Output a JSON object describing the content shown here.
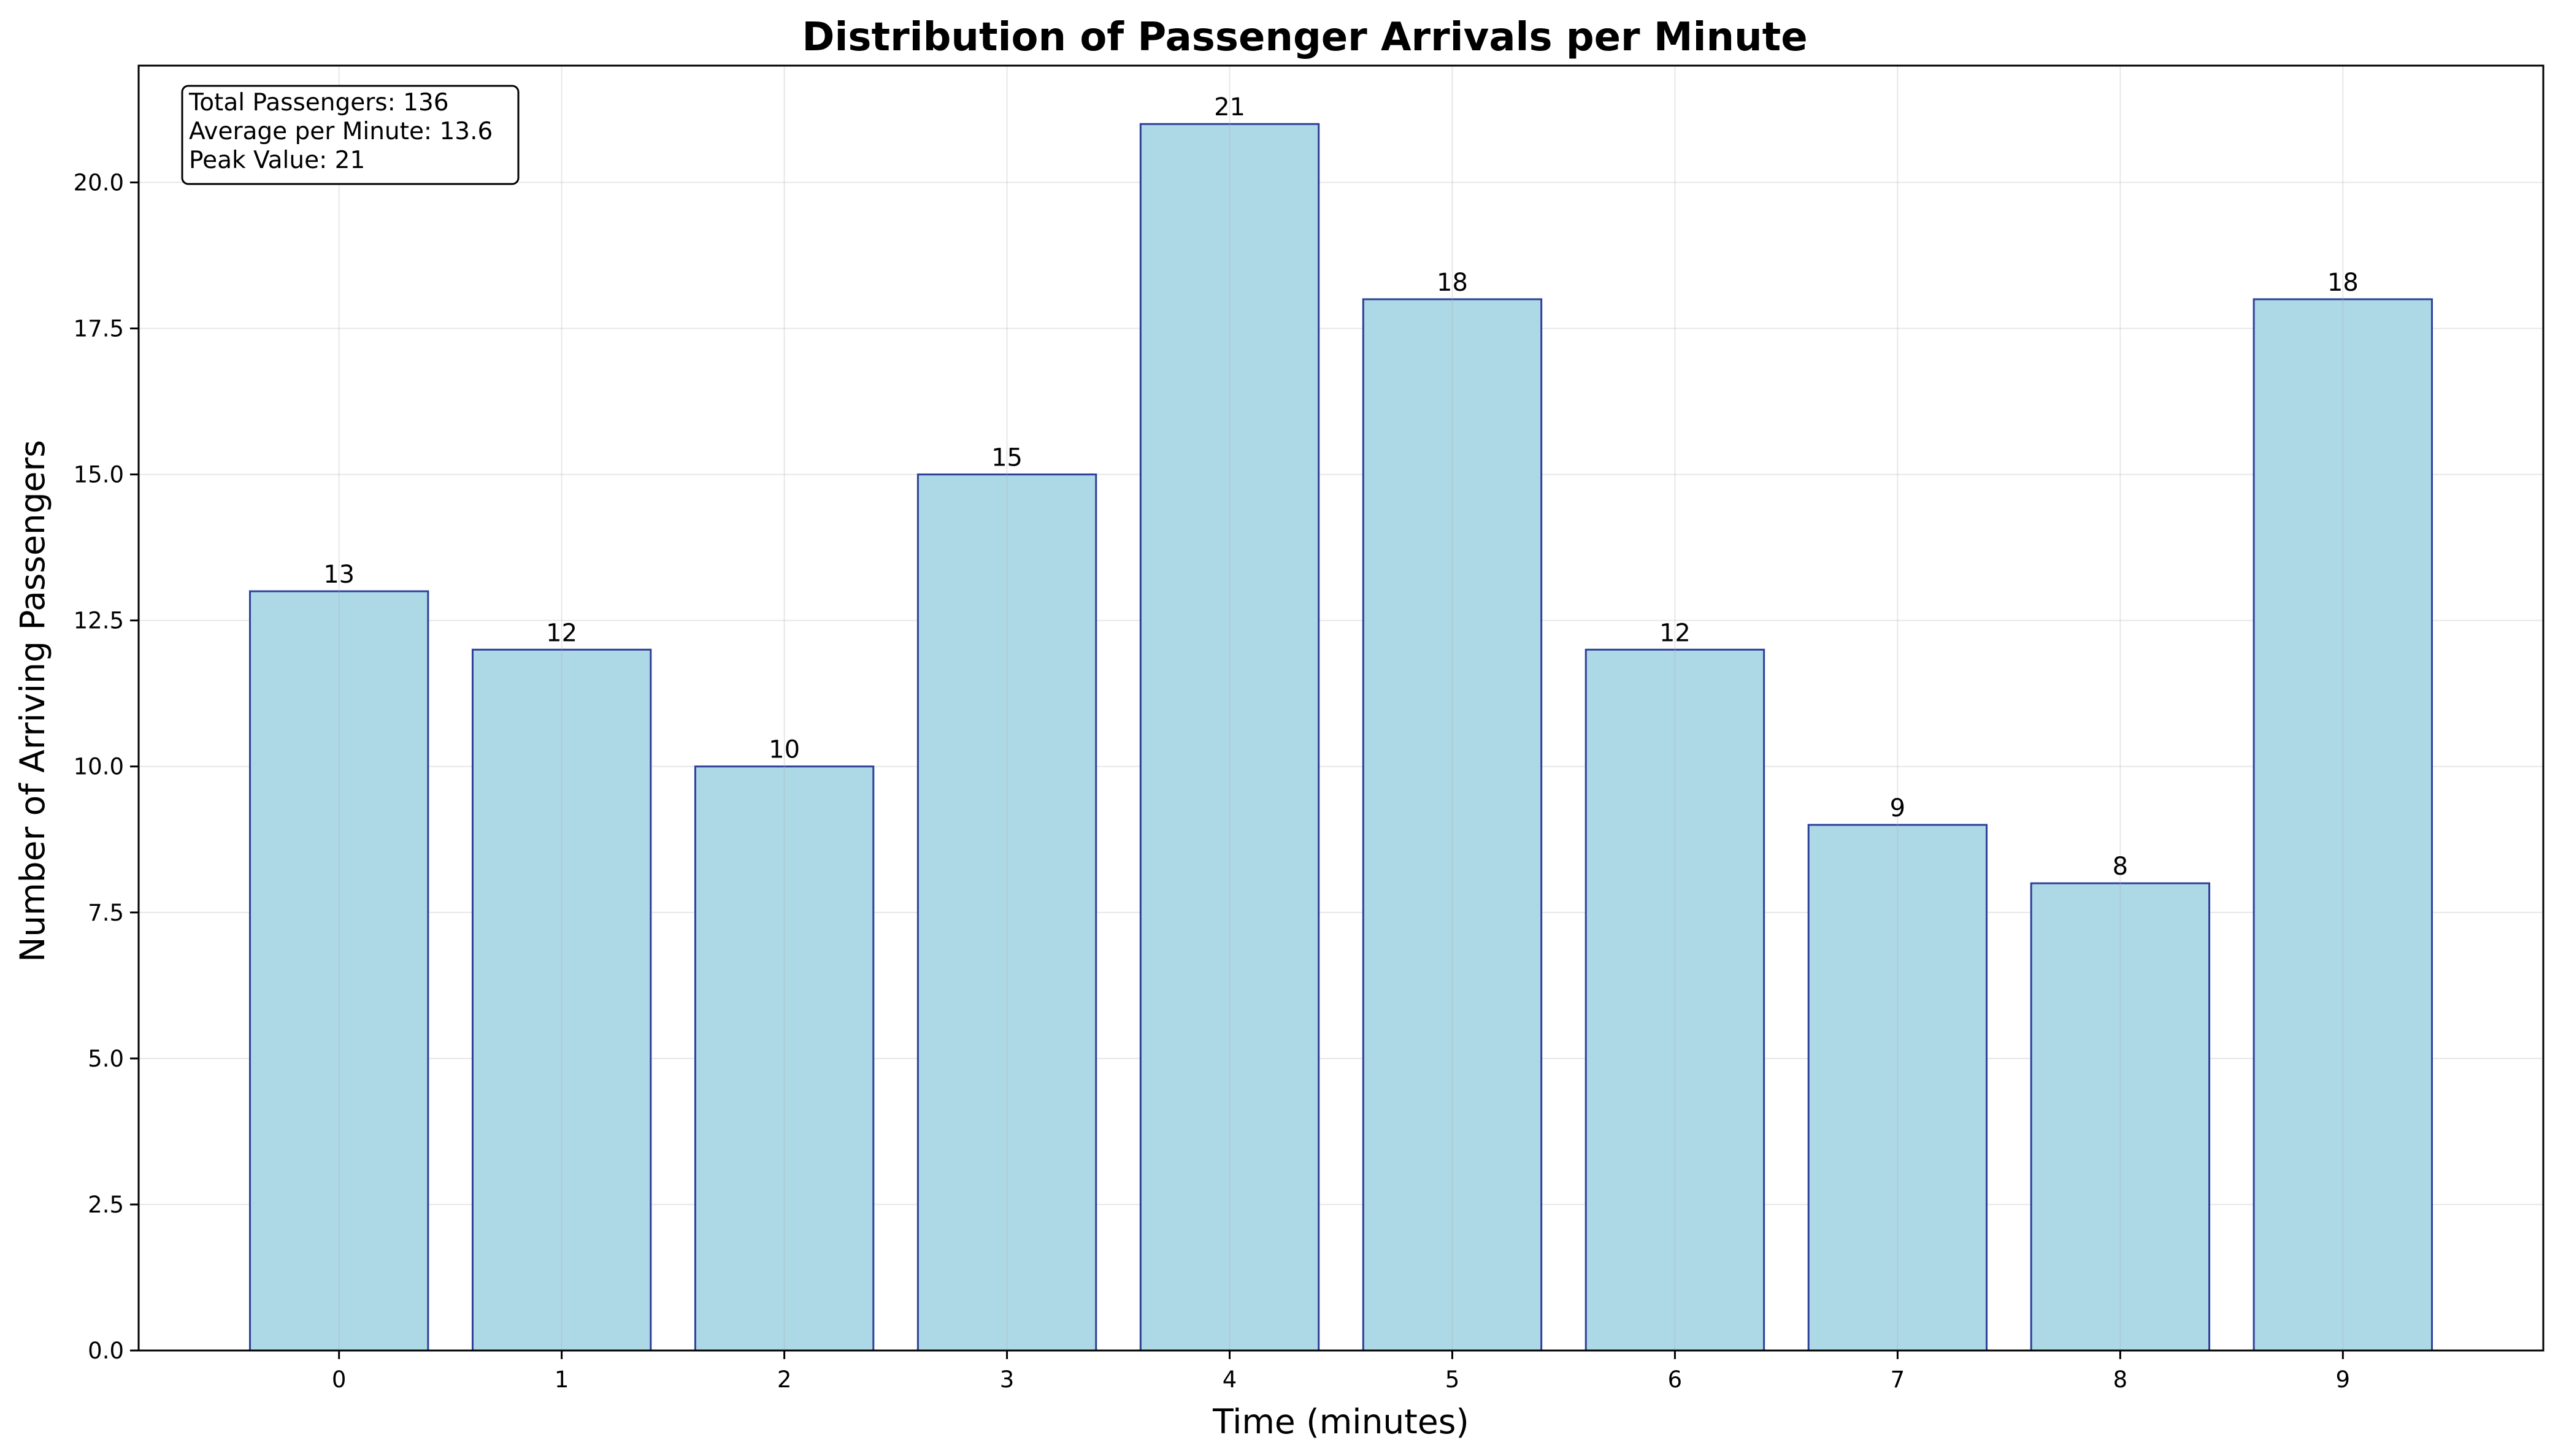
{
  "chart_data": {
    "type": "bar",
    "title": "Distribution of Passenger Arrivals per Minute",
    "xlabel": "Time (minutes)",
    "ylabel": "Number of Arriving Passengers",
    "categories": [
      "0",
      "1",
      "2",
      "3",
      "4",
      "5",
      "6",
      "7",
      "8",
      "9"
    ],
    "values": [
      13,
      12,
      10,
      15,
      21,
      18,
      12,
      9,
      8,
      18
    ],
    "value_labels": [
      "13",
      "12",
      "10",
      "15",
      "21",
      "18",
      "12",
      "9",
      "8",
      "18"
    ],
    "ylim": [
      0,
      22
    ],
    "yticks": [
      0,
      2.5,
      5,
      7.5,
      10,
      12.5,
      15,
      17.5,
      20
    ],
    "ytick_labels": [
      "0.0",
      "2.5",
      "5.0",
      "7.5",
      "10.0",
      "12.5",
      "15.0",
      "17.5",
      "20.0"
    ],
    "grid": true,
    "bar_color": "#add8e6",
    "bar_edge_color": "#2e3f99",
    "annotation_box": {
      "position": "top-left",
      "lines": [
        "Total Passengers: 136",
        "Average per Minute: 13.6",
        "Peak Value: 21"
      ]
    }
  }
}
